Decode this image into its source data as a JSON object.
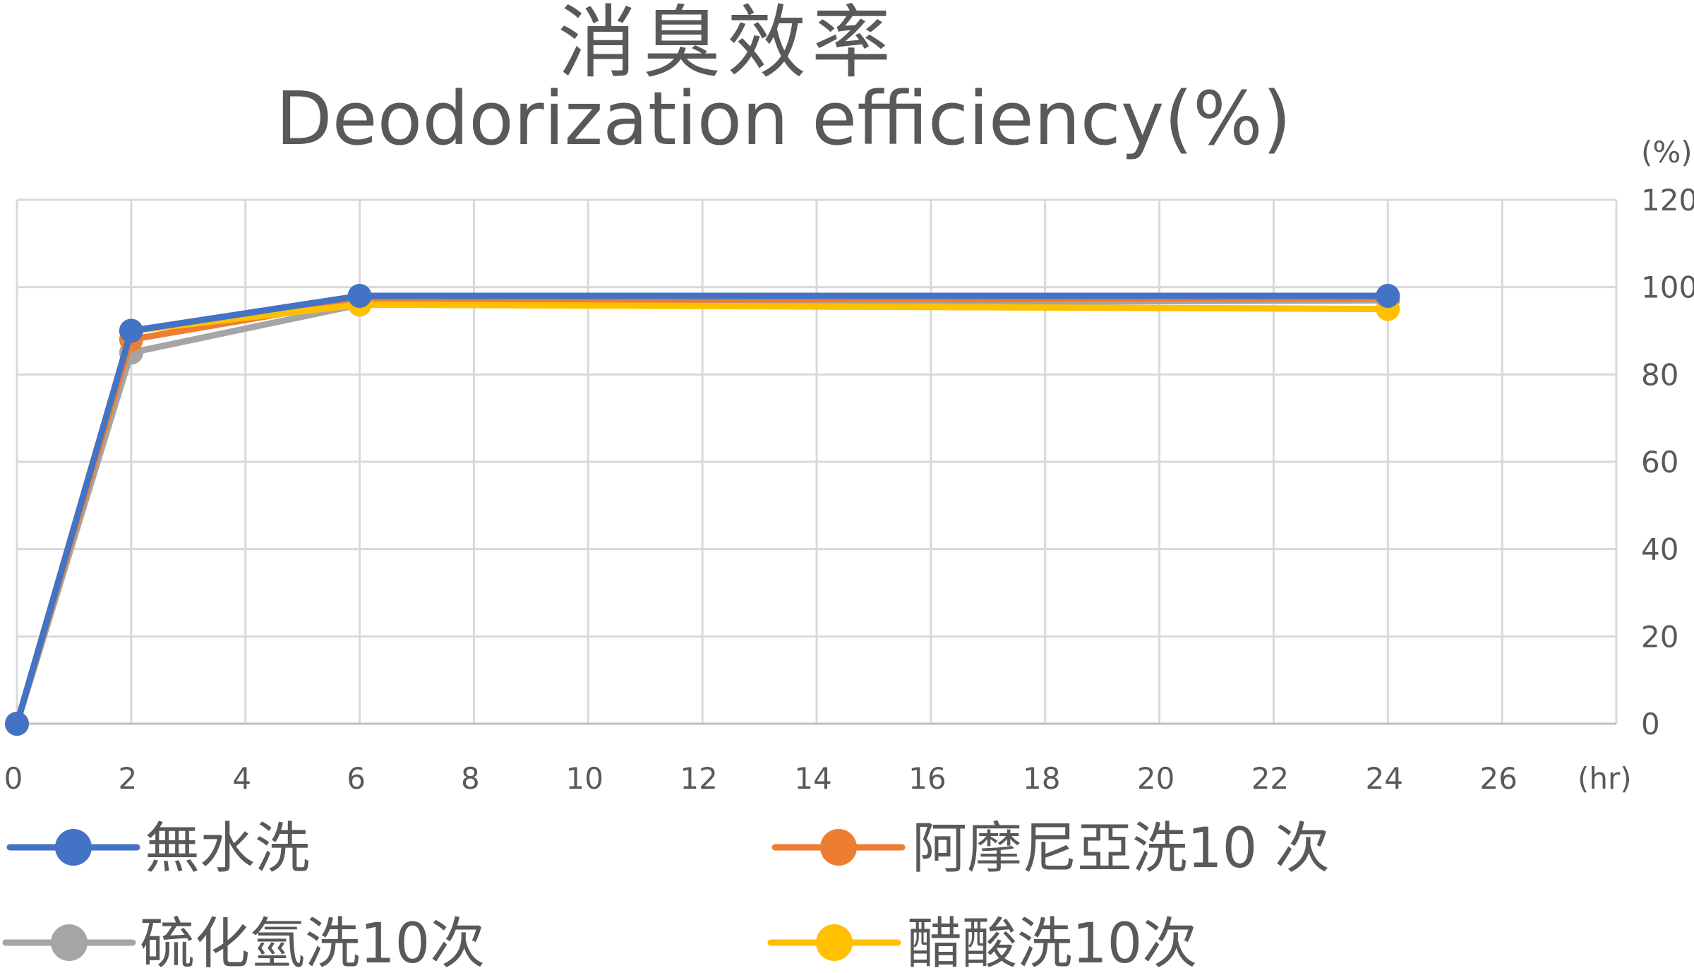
{
  "chart_data": {
    "type": "line",
    "title": "消臭效率",
    "subtitle": "Deodorization efficiency(%)",
    "xlabel": "(hr)",
    "ylabel": "(%)",
    "xlim": [
      0,
      28
    ],
    "ylim": [
      0,
      120
    ],
    "xticks": [
      0,
      2,
      4,
      6,
      8,
      10,
      12,
      14,
      16,
      18,
      20,
      22,
      24,
      26
    ],
    "yticks": [
      0,
      20,
      40,
      60,
      80,
      100,
      120
    ],
    "y_axis_position": "right",
    "grid": true,
    "legend_position": "bottom",
    "x": [
      0,
      2,
      6,
      24
    ],
    "series": [
      {
        "name": "硫化氫洗10次",
        "color": "#A5A5A5",
        "values": [
          0,
          85,
          96,
          97
        ]
      },
      {
        "name": "阿摩尼亞洗10 次",
        "color": "#ED7D31",
        "values": [
          0,
          88,
          97,
          97.5
        ]
      },
      {
        "name": "醋酸洗10次",
        "color": "#FFC000",
        "values": [
          0,
          90,
          96,
          95
        ]
      },
      {
        "name": "無水洗",
        "color": "#4472C4",
        "values": [
          0,
          90,
          98,
          98
        ]
      }
    ],
    "legend_order": [
      "無水洗",
      "阿摩尼亞洗10 次",
      "硫化氫洗10次",
      "醋酸洗10次"
    ]
  }
}
